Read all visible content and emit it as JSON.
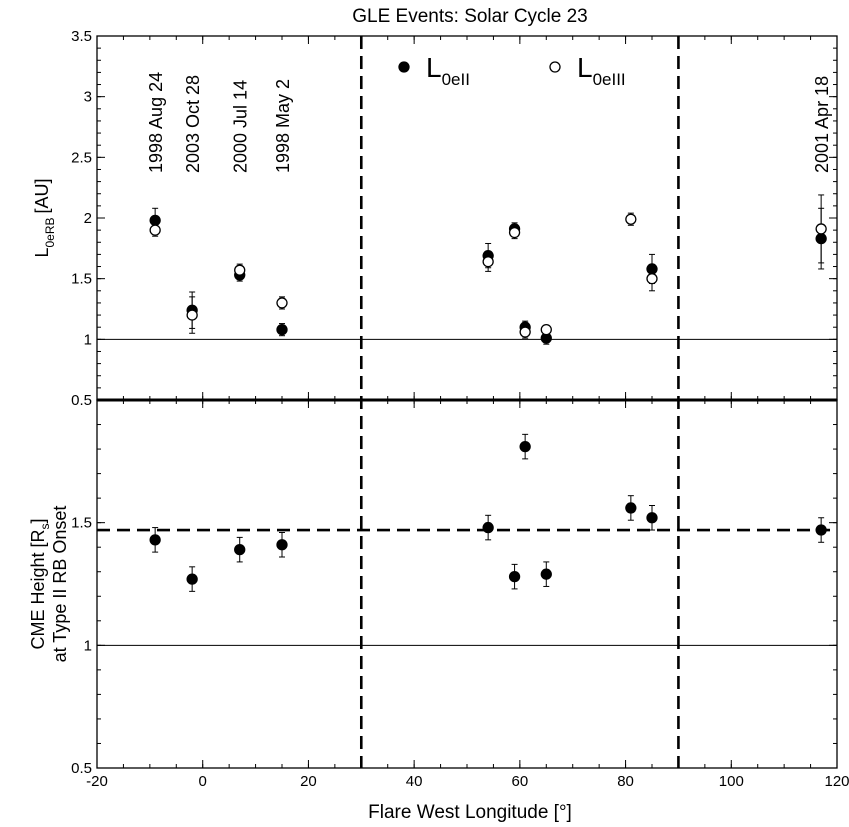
{
  "chart_data": [
    {
      "type": "scatter",
      "title": "GLE Events: Solar Cycle 23",
      "ylabel_main": "L",
      "ylabel_sub": "0eRB",
      "ylabel_unit": "[AU]",
      "xlim": [
        -20,
        120
      ],
      "ylim": [
        0.5,
        3.5
      ],
      "yticks": [
        "0.5",
        "1",
        "1.5",
        "2",
        "2.5",
        "3",
        "3.5"
      ],
      "yticks_values": [
        0.5,
        1,
        1.5,
        2,
        2.5,
        3,
        3.5
      ],
      "reference_line_y": 1,
      "legend": [
        {
          "symbol": "filled",
          "main": "L",
          "sub": "0eII"
        },
        {
          "symbol": "open",
          "main": "L",
          "sub": "0eIII"
        }
      ],
      "series": [
        {
          "marker": "filled",
          "points": [
            {
              "x": -9,
              "y": 1.98,
              "err": 0.1
            },
            {
              "x": -2,
              "y": 1.24,
              "err": 0.15
            },
            {
              "x": 7,
              "y": 1.53,
              "err": 0.05
            },
            {
              "x": 15,
              "y": 1.08,
              "err": 0.05
            },
            {
              "x": 54,
              "y": 1.69,
              "err": 0.1
            },
            {
              "x": 59,
              "y": 1.91,
              "err": 0.05
            },
            {
              "x": 61,
              "y": 1.1,
              "err": 0.05
            },
            {
              "x": 65,
              "y": 1.01,
              "err": 0.05
            },
            {
              "x": 85,
              "y": 1.58,
              "err": 0.12
            },
            {
              "x": 117,
              "y": 1.83,
              "err": 0.25
            }
          ]
        },
        {
          "marker": "open",
          "points": [
            {
              "x": -9,
              "y": 1.9,
              "err": 0.05
            },
            {
              "x": -2,
              "y": 1.2,
              "err": 0.15
            },
            {
              "x": 7,
              "y": 1.57,
              "err": 0.05
            },
            {
              "x": 15,
              "y": 1.3,
              "err": 0.05
            },
            {
              "x": 54,
              "y": 1.64,
              "err": 0.08
            },
            {
              "x": 59,
              "y": 1.88,
              "err": 0.05
            },
            {
              "x": 61,
              "y": 1.06,
              "err": 0.05
            },
            {
              "x": 65,
              "y": 1.08,
              "err": 0.03
            },
            {
              "x": 81,
              "y": 1.99,
              "err": 0.05
            },
            {
              "x": 85,
              "y": 1.5,
              "err": 0.1
            },
            {
              "x": 117,
              "y": 1.91,
              "err": 0.28
            }
          ]
        }
      ],
      "event_labels": [
        {
          "text": "1998 Aug 24",
          "x": -9
        },
        {
          "text": "2003 Oct 28",
          "x": -2
        },
        {
          "text": "2000 Jul 14",
          "x": 7
        },
        {
          "text": "1998 May 2",
          "x": 15
        },
        {
          "text": "2001 Apr 18",
          "x": 117
        }
      ]
    },
    {
      "type": "scatter",
      "ylabel_line1_main": "CME Height [R",
      "ylabel_line1_sub": "s",
      "ylabel_line1_end": "]",
      "ylabel_line2": "at Type II RB Onset",
      "xlabel": "Flare West Longitude [°]",
      "xlim": [
        -20,
        120
      ],
      "ylim": [
        0.5,
        2.0
      ],
      "yticks": [
        "0.5",
        "1",
        "1.5"
      ],
      "yticks_values": [
        0.5,
        1,
        1.5
      ],
      "xticks": [
        "-20",
        "0",
        "20",
        "40",
        "60",
        "80",
        "100",
        "120"
      ],
      "xticks_values": [
        -20,
        0,
        20,
        40,
        60,
        80,
        100,
        120
      ],
      "reference_line_y": 1,
      "dashed_line_y": 1.47,
      "series": [
        {
          "marker": "filled",
          "points": [
            {
              "x": -9,
              "y": 1.43,
              "err": 0.05
            },
            {
              "x": -2,
              "y": 1.27,
              "err": 0.05
            },
            {
              "x": 7,
              "y": 1.39,
              "err": 0.05
            },
            {
              "x": 15,
              "y": 1.41,
              "err": 0.05
            },
            {
              "x": 54,
              "y": 1.48,
              "err": 0.05
            },
            {
              "x": 59,
              "y": 1.28,
              "err": 0.05
            },
            {
              "x": 61,
              "y": 1.81,
              "err": 0.05
            },
            {
              "x": 65,
              "y": 1.29,
              "err": 0.05
            },
            {
              "x": 81,
              "y": 1.56,
              "err": 0.05
            },
            {
              "x": 85,
              "y": 1.52,
              "err": 0.05
            },
            {
              "x": 117,
              "y": 1.47,
              "err": 0.05
            }
          ]
        }
      ]
    }
  ],
  "dashed_vertical_lines_x": [
    30,
    90
  ]
}
